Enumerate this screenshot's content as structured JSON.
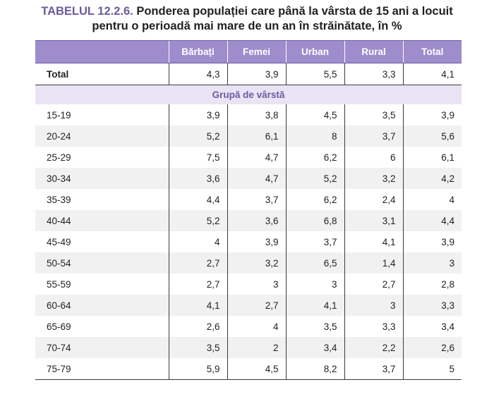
{
  "caption": {
    "number": "TABELUL 12.2.6.",
    "line1": "Ponderea populației care până la vârsta de 15 ani a locuit",
    "line2": "pentru o perioadă mai mare de un an în străinătate, în %"
  },
  "table": {
    "columns": [
      "",
      "Bărbați",
      "Femei",
      "Urban",
      "Rural",
      "Total"
    ],
    "total_row": {
      "label": "Total",
      "values": [
        "4,3",
        "3,9",
        "5,5",
        "3,3",
        "4,1"
      ]
    },
    "group_label": "Grupă de vârstă",
    "rows": [
      {
        "label": "15-19",
        "values": [
          "3,9",
          "3,8",
          "4,5",
          "3,5",
          "3,9"
        ]
      },
      {
        "label": "20-24",
        "values": [
          "5,2",
          "6,1",
          "8",
          "3,7",
          "5,6"
        ]
      },
      {
        "label": "25-29",
        "values": [
          "7,5",
          "4,7",
          "6,2",
          "6",
          "6,1"
        ]
      },
      {
        "label": "30-34",
        "values": [
          "3,6",
          "4,7",
          "5,2",
          "3,2",
          "4,2"
        ]
      },
      {
        "label": "35-39",
        "values": [
          "4,4",
          "3,7",
          "6,2",
          "2,4",
          "4"
        ]
      },
      {
        "label": "40-44",
        "values": [
          "5,2",
          "3,6",
          "6,8",
          "3,1",
          "4,4"
        ]
      },
      {
        "label": "45-49",
        "values": [
          "4",
          "3,9",
          "3,7",
          "4,1",
          "3,9"
        ]
      },
      {
        "label": "50-54",
        "values": [
          "2,7",
          "3,2",
          "6,5",
          "1,4",
          "3"
        ]
      },
      {
        "label": "55-59",
        "values": [
          "2,7",
          "3",
          "3",
          "2,7",
          "2,8"
        ]
      },
      {
        "label": "60-64",
        "values": [
          "4,1",
          "2,7",
          "4,1",
          "3",
          "3,3"
        ]
      },
      {
        "label": "65-69",
        "values": [
          "2,6",
          "4",
          "3,5",
          "3,3",
          "3,4"
        ]
      },
      {
        "label": "70-74",
        "values": [
          "3,5",
          "2",
          "3,4",
          "2,2",
          "2,6"
        ]
      },
      {
        "label": "75-79",
        "values": [
          "5,9",
          "4,5",
          "8,2",
          "3,7",
          "5"
        ]
      }
    ]
  },
  "colors": {
    "header_bg": "#9e8ccd",
    "accent": "#6b5ba0",
    "group_bg": "#e9e4f4",
    "stripe": "#f1f1f1"
  }
}
